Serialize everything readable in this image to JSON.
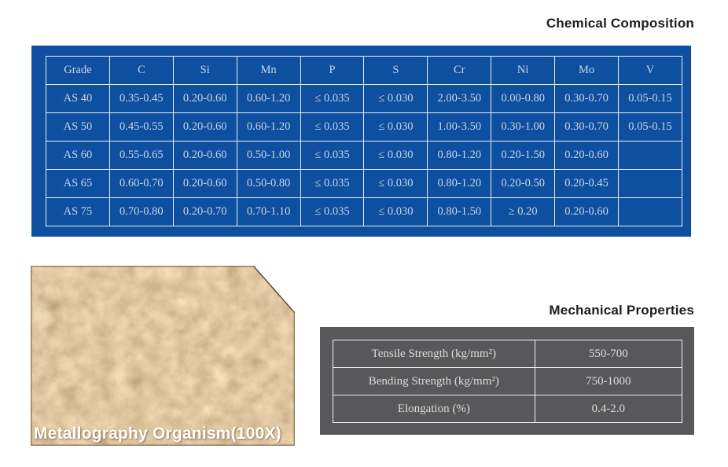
{
  "chemical_composition": {
    "title": "Chemical Composition",
    "panel_color": "#0e4f9f",
    "border_color": "#e9eef6",
    "text_color": "#c9d5e7",
    "columns": [
      "Grade",
      "C",
      "Si",
      "Mn",
      "P",
      "S",
      "Cr",
      "Ni",
      "Mo",
      "V"
    ],
    "rows": [
      [
        "AS 40",
        "0.35-0.45",
        "0.20-0.60",
        "0.60-1.20",
        "≤ 0.035",
        "≤ 0.030",
        "2.00-3.50",
        "0.00-0.80",
        "0.30-0.70",
        "0.05-0.15"
      ],
      [
        "AS 50",
        "0.45-0.55",
        "0.20-0.60",
        "0.60-1.20",
        "≤ 0.035",
        "≤ 0.030",
        "1.00-3.50",
        "0.30-1.00",
        "0.30-0.70",
        "0.05-0.15"
      ],
      [
        "AS 60",
        "0.55-0.65",
        "0.20-0.60",
        "0.50-1.00",
        "≤ 0.035",
        "≤ 0.030",
        "0.80-1.20",
        "0.20-1.50",
        "0.20-0.60",
        ""
      ],
      [
        "AS 65",
        "0.60-0.70",
        "0.20-0.60",
        "0.50-0.80",
        "≤ 0.035",
        "≤ 0.030",
        "0.80-1.20",
        "0.20-0.50",
        "0.20-0.45",
        ""
      ],
      [
        "AS 75",
        "0.70-0.80",
        "0.20-0.70",
        "0.70-1.10",
        "≤ 0.035",
        "≤ 0.030",
        "0.80-1.50",
        "≥ 0.20",
        "0.20-0.60",
        ""
      ]
    ]
  },
  "metallography": {
    "caption": "Metallography Organism(100X)",
    "base_color": "#bf935d",
    "light_tone": "#e8c189",
    "dark_tone": "#9f7747"
  },
  "mechanical_properties": {
    "title": "Mechanical Properties",
    "panel_color": "#58585a",
    "border_color": "#f2f2f2",
    "text_color": "#dcdcdc",
    "rows": [
      {
        "label": "Tensile Strength (kg/mm²)",
        "value": "550-700"
      },
      {
        "label": "Bending Strength (kg/mm²)",
        "value": "750-1000"
      },
      {
        "label": "Elongation (%)",
        "value": "0.4-2.0"
      }
    ]
  }
}
